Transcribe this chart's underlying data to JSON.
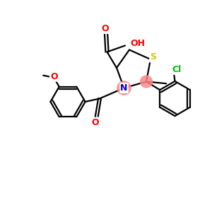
{
  "background_color": "#ffffff",
  "atom_colors": {
    "S": "#cccc00",
    "N": "#0000cc",
    "O": "#ff0000",
    "Cl": "#00bb00",
    "C": "#000000"
  },
  "highlight_color": "#ff8888",
  "figsize": [
    3.0,
    3.0
  ],
  "dpi": 100,
  "xlim": [
    0,
    10
  ],
  "ylim": [
    0,
    10
  ]
}
